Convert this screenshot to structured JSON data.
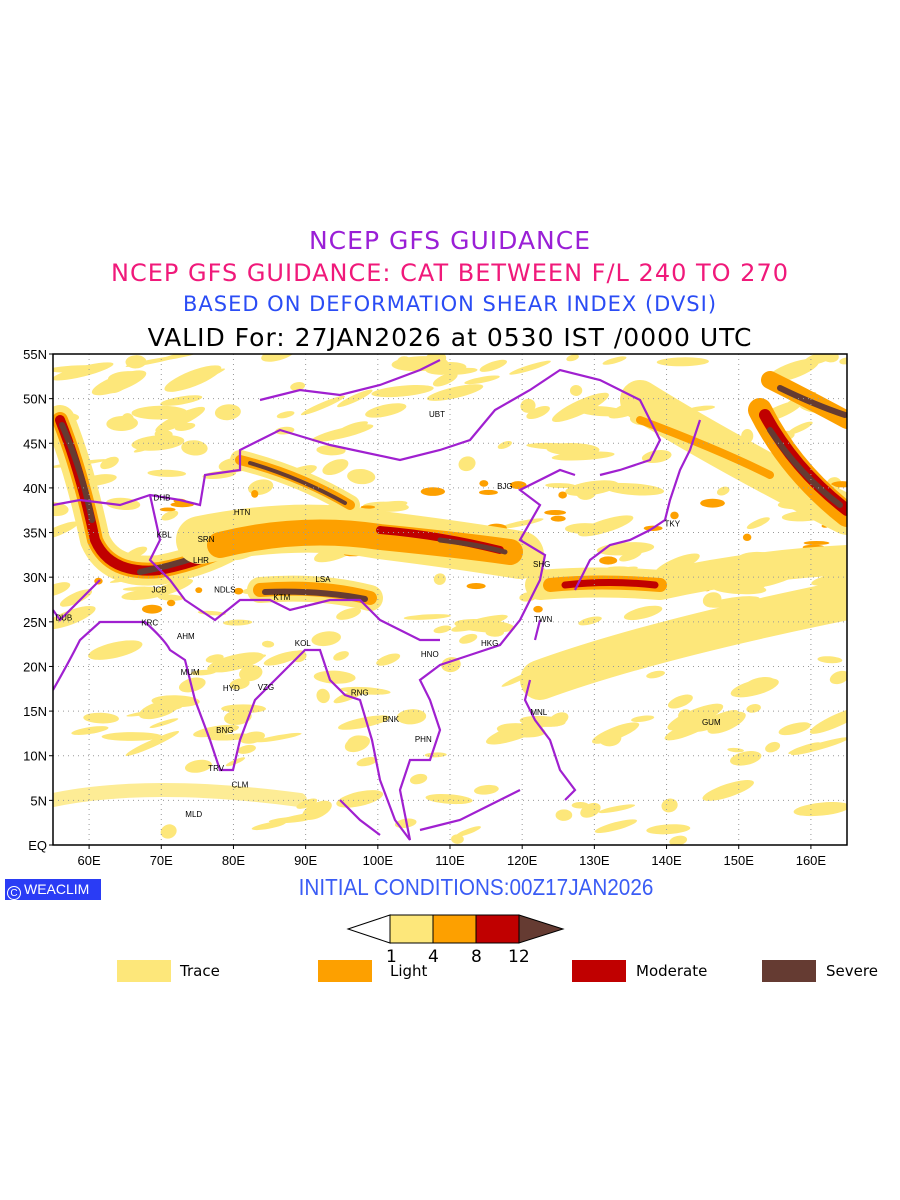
{
  "titles": {
    "line1": "NCEP GFS GUIDANCE",
    "line2": "NCEP GFS GUIDANCE: CAT BETWEEN F/L 240 TO 270",
    "line3": "BASED ON DEFORMATION SHEAR INDEX (DVSI)",
    "line4": "VALID For: 27JAN2026 at 0530 IST /0000 UTC"
  },
  "map": {
    "lon_range": [
      55,
      165
    ],
    "lat_range": [
      0,
      55
    ],
    "lat_labels": [
      "EQ",
      "5N",
      "10N",
      "15N",
      "20N",
      "25N",
      "30N",
      "35N",
      "40N",
      "45N",
      "50N",
      "55N"
    ],
    "lon_labels": [
      "60E",
      "70E",
      "80E",
      "90E",
      "100E",
      "110E",
      "120E",
      "130E",
      "140E",
      "150E",
      "160E"
    ],
    "cities": [
      {
        "name": "UBT",
        "lon": 108.2,
        "lat": 48.3
      },
      {
        "name": "BJG",
        "lon": 117.6,
        "lat": 40.2
      },
      {
        "name": "DHB",
        "lon": 70.1,
        "lat": 38.9
      },
      {
        "name": "HTN",
        "lon": 81.2,
        "lat": 37.3
      },
      {
        "name": "KBL",
        "lon": 70.4,
        "lat": 34.8
      },
      {
        "name": "SRN",
        "lon": 76.2,
        "lat": 34.3
      },
      {
        "name": "TKY",
        "lon": 140.8,
        "lat": 36.0
      },
      {
        "name": "LHR",
        "lon": 75.5,
        "lat": 31.9
      },
      {
        "name": "SHG",
        "lon": 122.7,
        "lat": 31.5
      },
      {
        "name": "LSA",
        "lon": 92.4,
        "lat": 29.8
      },
      {
        "name": "JCB",
        "lon": 69.7,
        "lat": 28.6
      },
      {
        "name": "NDLS",
        "lon": 78.8,
        "lat": 28.6
      },
      {
        "name": "KTM",
        "lon": 86.7,
        "lat": 27.8
      },
      {
        "name": "DUB",
        "lon": 56.5,
        "lat": 25.5
      },
      {
        "name": "KRC",
        "lon": 68.4,
        "lat": 24.9
      },
      {
        "name": "TWN",
        "lon": 122.9,
        "lat": 25.3
      },
      {
        "name": "AHM",
        "lon": 73.4,
        "lat": 23.4
      },
      {
        "name": "KOL",
        "lon": 89.6,
        "lat": 22.6
      },
      {
        "name": "HKG",
        "lon": 115.5,
        "lat": 22.6
      },
      {
        "name": "HNO",
        "lon": 107.2,
        "lat": 21.4
      },
      {
        "name": "MUM",
        "lon": 74.0,
        "lat": 19.4
      },
      {
        "name": "HYD",
        "lon": 79.7,
        "lat": 17.6
      },
      {
        "name": "VZG",
        "lon": 84.5,
        "lat": 17.7
      },
      {
        "name": "RNG",
        "lon": 97.5,
        "lat": 17.1
      },
      {
        "name": "MNL",
        "lon": 122.3,
        "lat": 14.9
      },
      {
        "name": "GUM",
        "lon": 146.2,
        "lat": 13.8
      },
      {
        "name": "BNK",
        "lon": 101.8,
        "lat": 14.1
      },
      {
        "name": "BNG",
        "lon": 78.8,
        "lat": 12.9
      },
      {
        "name": "PHN",
        "lon": 106.3,
        "lat": 11.9
      },
      {
        "name": "TRV",
        "lon": 77.6,
        "lat": 8.6
      },
      {
        "name": "CLM",
        "lon": 80.9,
        "lat": 6.8
      },
      {
        "name": "MLD",
        "lon": 74.5,
        "lat": 3.5
      }
    ]
  },
  "logo": "WEACLIM",
  "initial_conditions": "INITIAL CONDITIONS:00Z17JAN2026",
  "colorbar": {
    "ticks": [
      "1",
      "4",
      "8",
      "12"
    ],
    "colors": [
      "#fde77a",
      "#fda000",
      "#c00000",
      "#653b32"
    ]
  },
  "legend": [
    {
      "label": "Trace",
      "color": "#fde77a"
    },
    {
      "label": "Light",
      "color": "#fda000"
    },
    {
      "label": "Moderate",
      "color": "#c00000"
    },
    {
      "label": "Severe",
      "color": "#653b32"
    }
  ],
  "colors": {
    "boundary": "#a020d0",
    "title1": "#9a1fd6",
    "title2": "#f0197a",
    "title3": "#2a4cf5"
  }
}
